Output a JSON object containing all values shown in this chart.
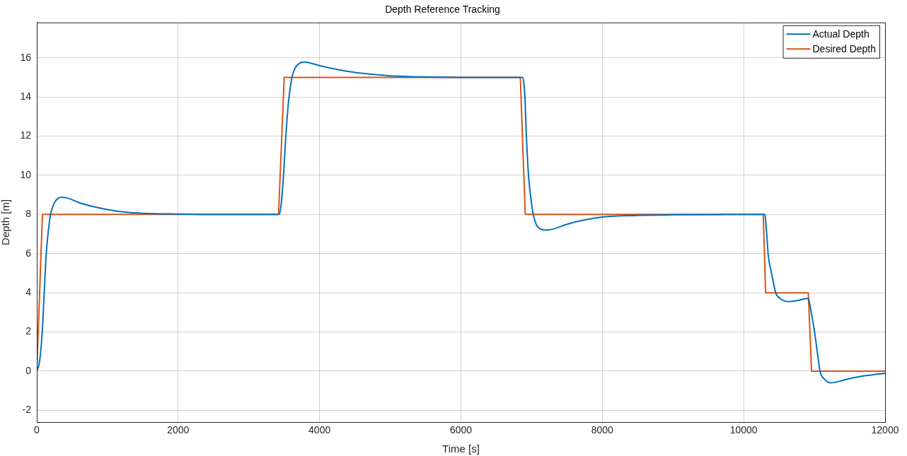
{
  "chart_data": {
    "type": "line",
    "title": "Depth Reference Tracking",
    "xlabel": "Time [s]",
    "ylabel": "Depth [m]",
    "xlim": [
      0,
      12000
    ],
    "xticks": [
      0,
      2000,
      4000,
      6000,
      8000,
      10000,
      12000
    ],
    "ylim": [
      -2.6,
      17.8
    ],
    "yticks": [
      -2,
      0,
      2,
      4,
      6,
      8,
      10,
      12,
      14,
      16
    ],
    "grid": true,
    "legend": "top right",
    "marker": "none",
    "line_style": "solid",
    "series": [
      {
        "name": "Actual Depth",
        "color": "#0072bd",
        "x": [
          0,
          40,
          77,
          105,
          134,
          165,
          194,
          250,
          300,
          360,
          450,
          600,
          800,
          1000,
          1250,
          1500,
          2000,
          2500,
          3000,
          3430,
          3460,
          3490,
          3523,
          3560,
          3610,
          3660,
          3720,
          3787,
          3880,
          4000,
          4250,
          4500,
          5000,
          5500,
          6000,
          6500,
          6873,
          6890,
          6905,
          6926,
          6956,
          6990,
          7023,
          7070,
          7130,
          7210,
          7300,
          7500,
          7750,
          8000,
          8500,
          9000,
          10000,
          10300,
          10315,
          10330,
          10345,
          10400,
          10453,
          10520,
          10640,
          10780,
          10900,
          10925,
          10950,
          10975,
          11003,
          11040,
          11080,
          11140,
          11236,
          11350,
          11500,
          11750,
          12000
        ],
        "values": [
          0,
          0.5,
          2,
          4,
          6,
          7.2,
          8,
          8.6,
          8.82,
          8.88,
          8.82,
          8.6,
          8.4,
          8.25,
          8.12,
          8.06,
          8.02,
          8.0,
          8.0,
          8.0,
          8.6,
          10,
          12,
          13.7,
          15,
          15.5,
          15.72,
          15.78,
          15.72,
          15.6,
          15.4,
          15.25,
          15.08,
          15.02,
          15.0,
          15.0,
          15.0,
          14.7,
          14,
          12,
          10,
          8.8,
          8,
          7.45,
          7.25,
          7.2,
          7.25,
          7.5,
          7.72,
          7.87,
          7.95,
          7.98,
          8.0,
          8.0,
          7.5,
          6.8,
          6,
          4.9,
          4,
          3.7,
          3.55,
          3.62,
          3.71,
          3.6,
          3.1,
          2.6,
          2,
          1,
          0,
          -0.4,
          -0.6,
          -0.52,
          -0.38,
          -0.22,
          -0.11
        ]
      },
      {
        "name": "Desired Depth",
        "color": "#d95319",
        "x": [
          0,
          80,
          3420,
          3500,
          6840,
          6910,
          10277,
          10310,
          10914,
          10960,
          12000
        ],
        "values": [
          0,
          8,
          8,
          15,
          15,
          8,
          8,
          4,
          4,
          0,
          0
        ]
      }
    ]
  }
}
